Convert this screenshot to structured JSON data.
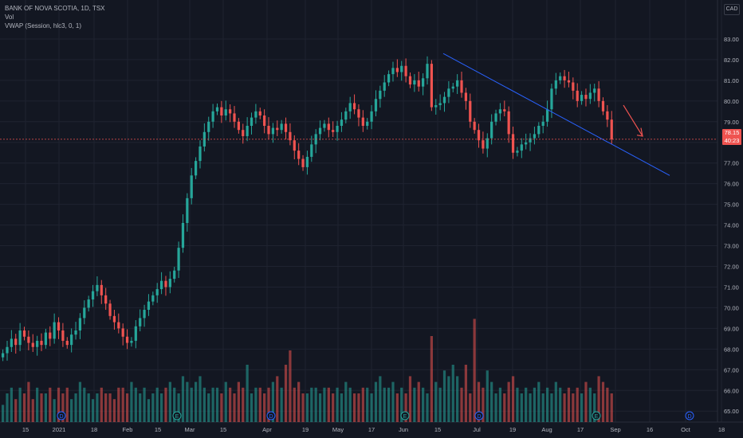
{
  "legend": {
    "symbol": "BANK OF NOVA SCOTIA, 1D, TSX",
    "vol": "Vol",
    "vwap": "VWAP (Session, hlc3, 0, 1)"
  },
  "currency": "CAD",
  "last_price": {
    "price": "78.15",
    "countdown": "40:23"
  },
  "colors": {
    "bg": "#131722",
    "grid": "#1f2330",
    "up": "#26a69a",
    "down": "#ef5350",
    "trendline": "#2962ff",
    "axis_text": "#b2b5be"
  },
  "chart_data": {
    "type": "candlestick",
    "ylim": [
      64.7,
      83.5
    ],
    "y_ticks": [
      "83.00",
      "82.00",
      "81.00",
      "80.00",
      "79.00",
      "78.00",
      "77.00",
      "76.00",
      "75.00",
      "74.00",
      "73.00",
      "72.00",
      "71.00",
      "70.00",
      "69.00",
      "68.00",
      "67.00",
      "66.00",
      "65.00"
    ],
    "x_ticks": [
      "15",
      "2021",
      "18",
      "Feb",
      "15",
      "Mar",
      "15",
      "Apr",
      "19",
      "May",
      "17",
      "Jun",
      "15",
      "Jul",
      "19",
      "Aug",
      "17",
      "Sep",
      "16",
      "Oct",
      "18"
    ],
    "closes": [
      67.8,
      68.1,
      68.5,
      68.2,
      68.9,
      68.6,
      68.3,
      68.1,
      68.4,
      68.2,
      68.8,
      68.5,
      69.3,
      68.9,
      68.4,
      68.2,
      68.7,
      68.9,
      69.5,
      70.0,
      70.4,
      70.8,
      71.1,
      70.6,
      70.2,
      69.6,
      69.3,
      69.0,
      68.6,
      68.3,
      68.4,
      69.1,
      69.5,
      69.9,
      70.3,
      70.6,
      70.9,
      71.3,
      71.0,
      71.4,
      71.8,
      72.9,
      74.1,
      75.3,
      76.4,
      77.1,
      77.8,
      78.5,
      79.0,
      79.5,
      79.7,
      79.3,
      79.6,
      79.4,
      79.0,
      78.6,
      78.3,
      78.8,
      79.2,
      79.5,
      79.3,
      78.8,
      78.4,
      78.7,
      78.6,
      78.9,
      78.5,
      78.1,
      77.6,
      77.2,
      76.8,
      77.3,
      77.9,
      78.4,
      78.7,
      78.9,
      78.6,
      78.5,
      78.8,
      79.1,
      79.5,
      79.9,
      79.6,
      79.2,
      78.8,
      79.0,
      79.5,
      80.1,
      80.5,
      80.9,
      81.3,
      81.6,
      81.4,
      81.7,
      81.2,
      80.8,
      81.0,
      80.7,
      81.1,
      81.8,
      79.7,
      79.8,
      79.9,
      80.2,
      80.6,
      80.7,
      81.0,
      80.4,
      80.0,
      79.0,
      78.6,
      78.1,
      77.7,
      78.2,
      79.0,
      79.4,
      79.6,
      79.5,
      78.4,
      77.5,
      77.6,
      77.9,
      78.0,
      78.2,
      78.4,
      78.8,
      79.0,
      79.6,
      80.6,
      81.0,
      81.2,
      81.0,
      80.9,
      80.5,
      80.0,
      80.3,
      80.1,
      80.4,
      80.6,
      80.0,
      79.5,
      79.1,
      78.15
    ],
    "volumes": [
      0.3,
      0.5,
      0.6,
      0.4,
      0.6,
      0.5,
      0.7,
      0.4,
      0.6,
      0.5,
      0.5,
      0.6,
      0.4,
      0.6,
      0.5,
      0.6,
      0.4,
      0.5,
      0.7,
      0.6,
      0.5,
      0.4,
      0.5,
      0.6,
      0.5,
      0.5,
      0.4,
      0.6,
      0.6,
      0.5,
      0.7,
      0.6,
      0.5,
      0.6,
      0.4,
      0.5,
      0.6,
      0.5,
      0.6,
      0.7,
      0.6,
      0.5,
      0.8,
      0.7,
      0.6,
      0.7,
      0.8,
      0.6,
      0.5,
      0.6,
      0.6,
      0.5,
      0.7,
      0.6,
      0.5,
      0.7,
      0.6,
      1.0,
      0.5,
      0.6,
      0.6,
      0.5,
      0.6,
      0.7,
      0.8,
      0.6,
      1.0,
      1.25,
      0.6,
      0.7,
      0.5,
      0.5,
      0.6,
      0.6,
      0.5,
      0.6,
      0.6,
      0.5,
      0.6,
      0.5,
      0.7,
      0.6,
      0.5,
      0.5,
      0.6,
      0.6,
      0.5,
      0.7,
      0.8,
      0.6,
      0.6,
      0.7,
      0.5,
      0.6,
      0.5,
      0.8,
      0.6,
      0.7,
      0.6,
      0.5,
      1.5,
      0.7,
      0.6,
      0.9,
      0.8,
      1.0,
      0.8,
      0.6,
      1.0,
      0.5,
      1.8,
      0.7,
      0.6,
      0.9,
      0.7,
      0.5,
      0.6,
      0.5,
      0.7,
      0.8,
      0.6,
      0.5,
      0.6,
      0.5,
      0.6,
      0.7,
      0.5,
      0.6,
      0.5,
      0.7,
      0.6,
      0.5,
      0.6,
      0.5,
      0.6,
      0.5,
      0.7,
      0.6,
      0.5,
      0.8,
      0.7,
      0.6,
      0.5
    ]
  }
}
